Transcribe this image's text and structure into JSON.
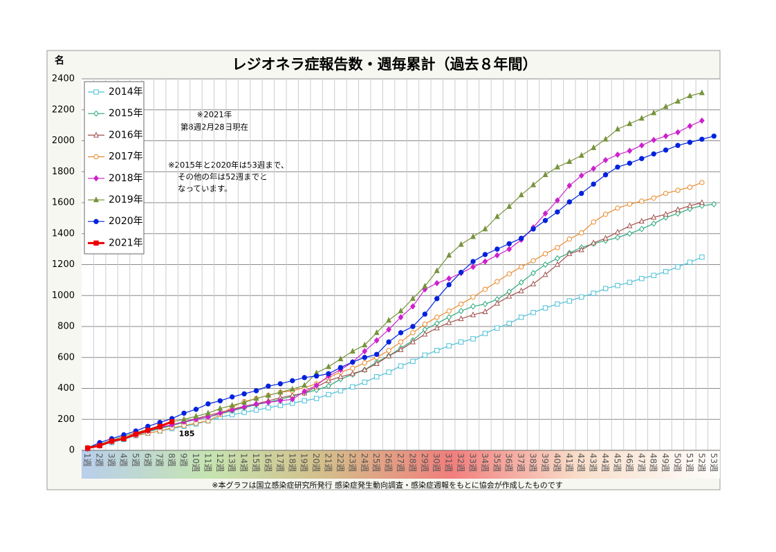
{
  "chart_data": {
    "type": "line",
    "title": "レジオネラ症報告数・週毎累計（過去８年間）",
    "y_label": "名",
    "annotations": [
      "※2021年",
      "第8週2月28日現在",
      "※2015年と2020年は53週まで、",
      "その他の年は52週までと",
      "なっています。"
    ],
    "footnote": "※本グラフは国立感染症研究所発行 感染症発生動向調査・感染症週報をもとに協会が作成したものです",
    "categories": [
      "1週",
      "2週",
      "3週",
      "4週",
      "5週",
      "6週",
      "7週",
      "8週",
      "9週",
      "10週",
      "11週",
      "12週",
      "13週",
      "14週",
      "15週",
      "16週",
      "17週",
      "18週",
      "19週",
      "20週",
      "21週",
      "22週",
      "23週",
      "24週",
      "25週",
      "26週",
      "27週",
      "28週",
      "29週",
      "30週",
      "31週",
      "32週",
      "33週",
      "34週",
      "35週",
      "36週",
      "37週",
      "38週",
      "39週",
      "40週",
      "41週",
      "42週",
      "43週",
      "44週",
      "45週",
      "46週",
      "47週",
      "48週",
      "49週",
      "50週",
      "51週",
      "52週",
      "53週"
    ],
    "ylim": [
      0,
      2400
    ],
    "yticks": [
      0,
      200,
      400,
      600,
      800,
      1000,
      1200,
      1400,
      1600,
      1800,
      2000,
      2200,
      2400
    ],
    "grid": true,
    "legend": "upper left",
    "series": [
      {
        "name": "2014年",
        "color": "#4bc0d6",
        "marker": "square",
        "filled": false,
        "values": [
          10,
          30,
          50,
          70,
          95,
          110,
          125,
          140,
          155,
          170,
          190,
          215,
          230,
          245,
          260,
          275,
          290,
          305,
          320,
          335,
          360,
          385,
          410,
          440,
          475,
          505,
          545,
          575,
          615,
          645,
          675,
          700,
          720,
          755,
          790,
          820,
          860,
          890,
          920,
          945,
          965,
          990,
          1015,
          1045,
          1065,
          1085,
          1110,
          1130,
          1155,
          1185,
          1215,
          1248,
          null
        ]
      },
      {
        "name": "2015年",
        "color": "#2aa87a",
        "marker": "diamond",
        "filled": false,
        "values": [
          15,
          35,
          55,
          75,
          100,
          120,
          140,
          160,
          180,
          200,
          215,
          235,
          255,
          275,
          295,
          310,
          330,
          350,
          370,
          390,
          415,
          460,
          490,
          520,
          570,
          610,
          660,
          710,
          780,
          820,
          860,
          900,
          930,
          945,
          975,
          1025,
          1085,
          1145,
          1200,
          1240,
          1275,
          1310,
          1335,
          1355,
          1375,
          1400,
          1430,
          1465,
          1505,
          1530,
          1560,
          1580,
          1590
        ]
      },
      {
        "name": "2016年",
        "color": "#a0504a",
        "marker": "triangle",
        "filled": false,
        "values": [
          10,
          35,
          60,
          80,
          105,
          125,
          145,
          165,
          185,
          205,
          225,
          245,
          265,
          285,
          300,
          320,
          340,
          355,
          370,
          410,
          450,
          475,
          495,
          520,
          560,
          610,
          650,
          700,
          750,
          790,
          825,
          850,
          875,
          895,
          950,
          995,
          1030,
          1075,
          1135,
          1200,
          1270,
          1295,
          1340,
          1370,
          1410,
          1450,
          1480,
          1505,
          1525,
          1555,
          1580,
          1600,
          null
        ]
      },
      {
        "name": "2017年",
        "color": "#e88a2c",
        "marker": "circle",
        "filled": false,
        "values": [
          10,
          30,
          55,
          75,
          95,
          110,
          125,
          145,
          160,
          175,
          190,
          230,
          280,
          315,
          335,
          355,
          375,
          385,
          405,
          430,
          470,
          505,
          530,
          565,
          600,
          645,
          700,
          760,
          815,
          860,
          900,
          945,
          990,
          1040,
          1090,
          1140,
          1185,
          1225,
          1270,
          1310,
          1365,
          1405,
          1475,
          1525,
          1565,
          1590,
          1610,
          1630,
          1660,
          1680,
          1700,
          1730,
          null
        ]
      },
      {
        "name": "2018年",
        "color": "#cc22cc",
        "marker": "diamond",
        "filled": true,
        "values": [
          10,
          30,
          55,
          75,
          100,
          125,
          150,
          165,
          185,
          200,
          215,
          240,
          260,
          280,
          300,
          310,
          320,
          330,
          380,
          420,
          480,
          520,
          570,
          640,
          710,
          780,
          860,
          930,
          1040,
          1080,
          1110,
          1145,
          1185,
          1220,
          1260,
          1300,
          1360,
          1440,
          1530,
          1615,
          1710,
          1775,
          1820,
          1875,
          1910,
          1935,
          1970,
          2005,
          2030,
          2055,
          2095,
          2130,
          null
        ]
      },
      {
        "name": "2019年",
        "color": "#77933c",
        "marker": "triangle",
        "filled": true,
        "values": [
          15,
          40,
          65,
          90,
          115,
          135,
          160,
          185,
          200,
          220,
          240,
          270,
          290,
          310,
          335,
          355,
          375,
          395,
          420,
          500,
          540,
          590,
          640,
          680,
          760,
          840,
          900,
          980,
          1060,
          1160,
          1260,
          1330,
          1380,
          1430,
          1510,
          1575,
          1650,
          1715,
          1780,
          1830,
          1865,
          1905,
          1955,
          2010,
          2075,
          2110,
          2145,
          2180,
          2220,
          2255,
          2290,
          2310,
          null
        ]
      },
      {
        "name": "2020年",
        "color": "#0022dd",
        "marker": "circle",
        "filled": true,
        "values": [
          15,
          50,
          75,
          100,
          125,
          155,
          180,
          205,
          240,
          265,
          300,
          320,
          345,
          365,
          385,
          415,
          430,
          450,
          470,
          480,
          495,
          535,
          570,
          600,
          620,
          700,
          760,
          800,
          880,
          980,
          1070,
          1150,
          1220,
          1265,
          1300,
          1335,
          1370,
          1430,
          1485,
          1540,
          1605,
          1660,
          1720,
          1780,
          1830,
          1855,
          1885,
          1915,
          1940,
          1970,
          1990,
          2010,
          2030
        ]
      },
      {
        "name": "2021年",
        "color": "#ee0000",
        "marker": "square",
        "filled": true,
        "width": 3,
        "label_last": true,
        "values": [
          15,
          30,
          60,
          75,
          105,
          130,
          155,
          185,
          null,
          null,
          null,
          null,
          null,
          null,
          null,
          null,
          null,
          null,
          null,
          null,
          null,
          null,
          null,
          null,
          null,
          null,
          null,
          null,
          null,
          null,
          null,
          null,
          null,
          null,
          null,
          null,
          null,
          null,
          null,
          null,
          null,
          null,
          null,
          null,
          null,
          null,
          null,
          null,
          null,
          null,
          null,
          null,
          null
        ]
      }
    ]
  }
}
